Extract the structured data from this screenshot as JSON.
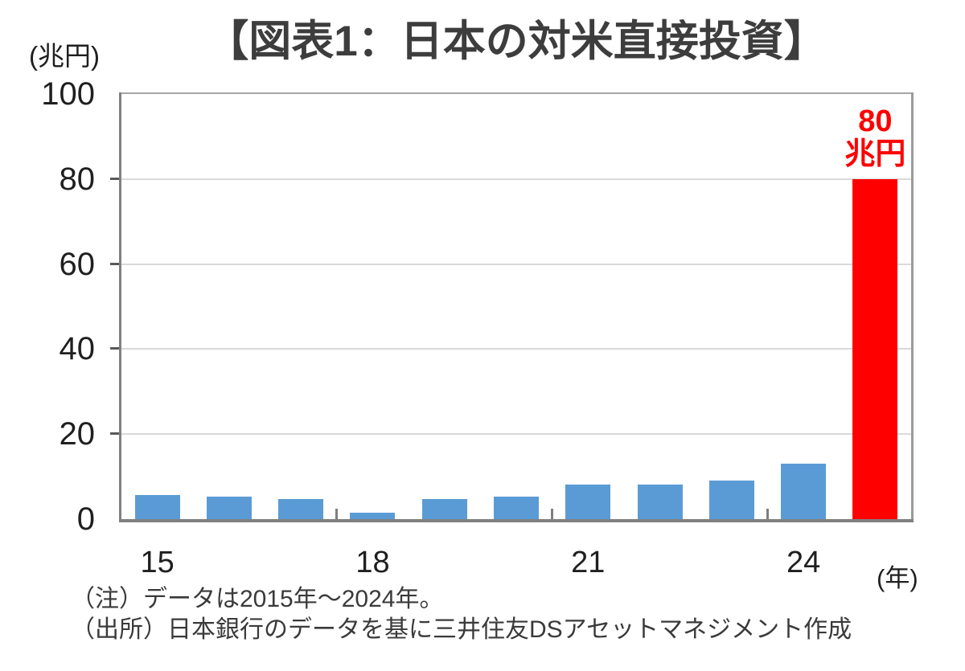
{
  "chart_data": {
    "type": "bar",
    "title": "【図表1：日本の対米直接投資】",
    "y_unit_label": "(兆円)",
    "x_unit_label": "(年)",
    "categories": [
      "2015",
      "2016",
      "2017",
      "2018",
      "2019",
      "2020",
      "2021",
      "2022",
      "2023",
      "2024",
      "80兆円"
    ],
    "values": [
      5.6,
      5.3,
      4.8,
      1.5,
      4.7,
      5.3,
      8.1,
      8.2,
      9.0,
      13.0,
      80
    ],
    "ylim": [
      0,
      100
    ],
    "yticks": [
      0,
      20,
      40,
      60,
      80,
      100
    ],
    "xticks": [
      {
        "label": "15",
        "pos": 0
      },
      {
        "label": "18",
        "pos": 3
      },
      {
        "label": "21",
        "pos": 6
      },
      {
        "label": "24",
        "pos": 9
      }
    ],
    "group_tick_positions": [
      3,
      6,
      9
    ],
    "bar_color": "#5B9BD5",
    "highlight": {
      "index": 10,
      "color": "#FF0000",
      "label_line1": "80",
      "label_line2": "兆円"
    },
    "grid": true,
    "legend": false
  },
  "footer": {
    "note1": "（注）データは2015年～2024年。",
    "note2": "（出所）日本銀行のデータを基に三井住友DSアセットマネジメント作成"
  }
}
